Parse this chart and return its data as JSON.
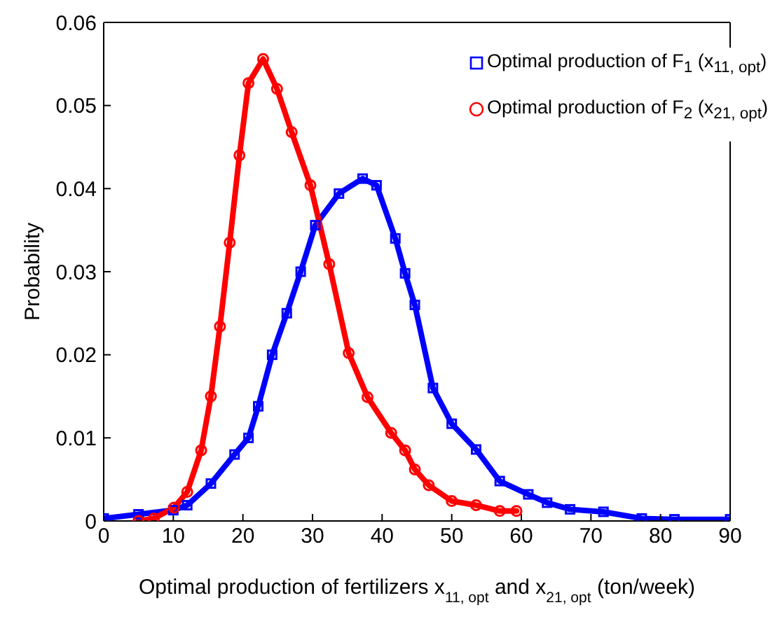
{
  "chart_data": {
    "type": "line",
    "xlabel": "Optimal production of fertilizers x$_{11, opt}$ and x$_{21, opt}$ (ton/week)",
    "ylabel": "Probability",
    "xlim": [
      0,
      90
    ],
    "xticks": [
      0,
      10,
      20,
      30,
      40,
      50,
      60,
      70,
      80,
      90
    ],
    "ylim": [
      0,
      0.06
    ],
    "yticks": [
      0,
      0.01,
      0.02,
      0.03,
      0.04,
      0.05,
      0.06
    ],
    "legend": "top right",
    "line_style": "solid",
    "series": [
      {
        "name": "Optimal production of F$_{1}$ (x$_{11, opt}$)",
        "color": "#0000ff",
        "marker": "square",
        "x": [
          0,
          5,
          10,
          12,
          15.4,
          18.8,
          20.8,
          22.2,
          24.2,
          26.3,
          28.3,
          30.4,
          33.8,
          37.2,
          39.2,
          41.9,
          43.3,
          44.7,
          47.3,
          50,
          53.5,
          56.9,
          61,
          63.7,
          67,
          71.8,
          77.3,
          82,
          90
        ],
        "values": [
          0.0003,
          0.0008,
          0.0013,
          0.0019,
          0.0045,
          0.008,
          0.01,
          0.0138,
          0.02,
          0.025,
          0.03,
          0.0356,
          0.0394,
          0.0412,
          0.0404,
          0.034,
          0.0298,
          0.026,
          0.016,
          0.0117,
          0.0086,
          0.0048,
          0.0032,
          0.0022,
          0.0014,
          0.0011,
          0.0003,
          0.0002,
          0.0002
        ]
      },
      {
        "name": "Optimal production of F$_{2}$ (x$_{21, opt}$)",
        "color": "#ff0000",
        "marker": "circle",
        "x": [
          5,
          7.2,
          10.1,
          12,
          14,
          15.4,
          16.7,
          18.1,
          19.5,
          20.8,
          22.9,
          24.9,
          27,
          29.7,
          32.4,
          35.2,
          37.9,
          41.3,
          43.3,
          44.7,
          46.7,
          50,
          53.5,
          56.9,
          59.3
        ],
        "values": [
          0,
          0.0003,
          0.0016,
          0.0035,
          0.0085,
          0.015,
          0.0234,
          0.0335,
          0.044,
          0.0527,
          0.0556,
          0.052,
          0.0468,
          0.0404,
          0.0309,
          0.0202,
          0.0149,
          0.0106,
          0.0085,
          0.0062,
          0.0043,
          0.0024,
          0.0019,
          0.0012,
          0.0012
        ]
      }
    ]
  }
}
